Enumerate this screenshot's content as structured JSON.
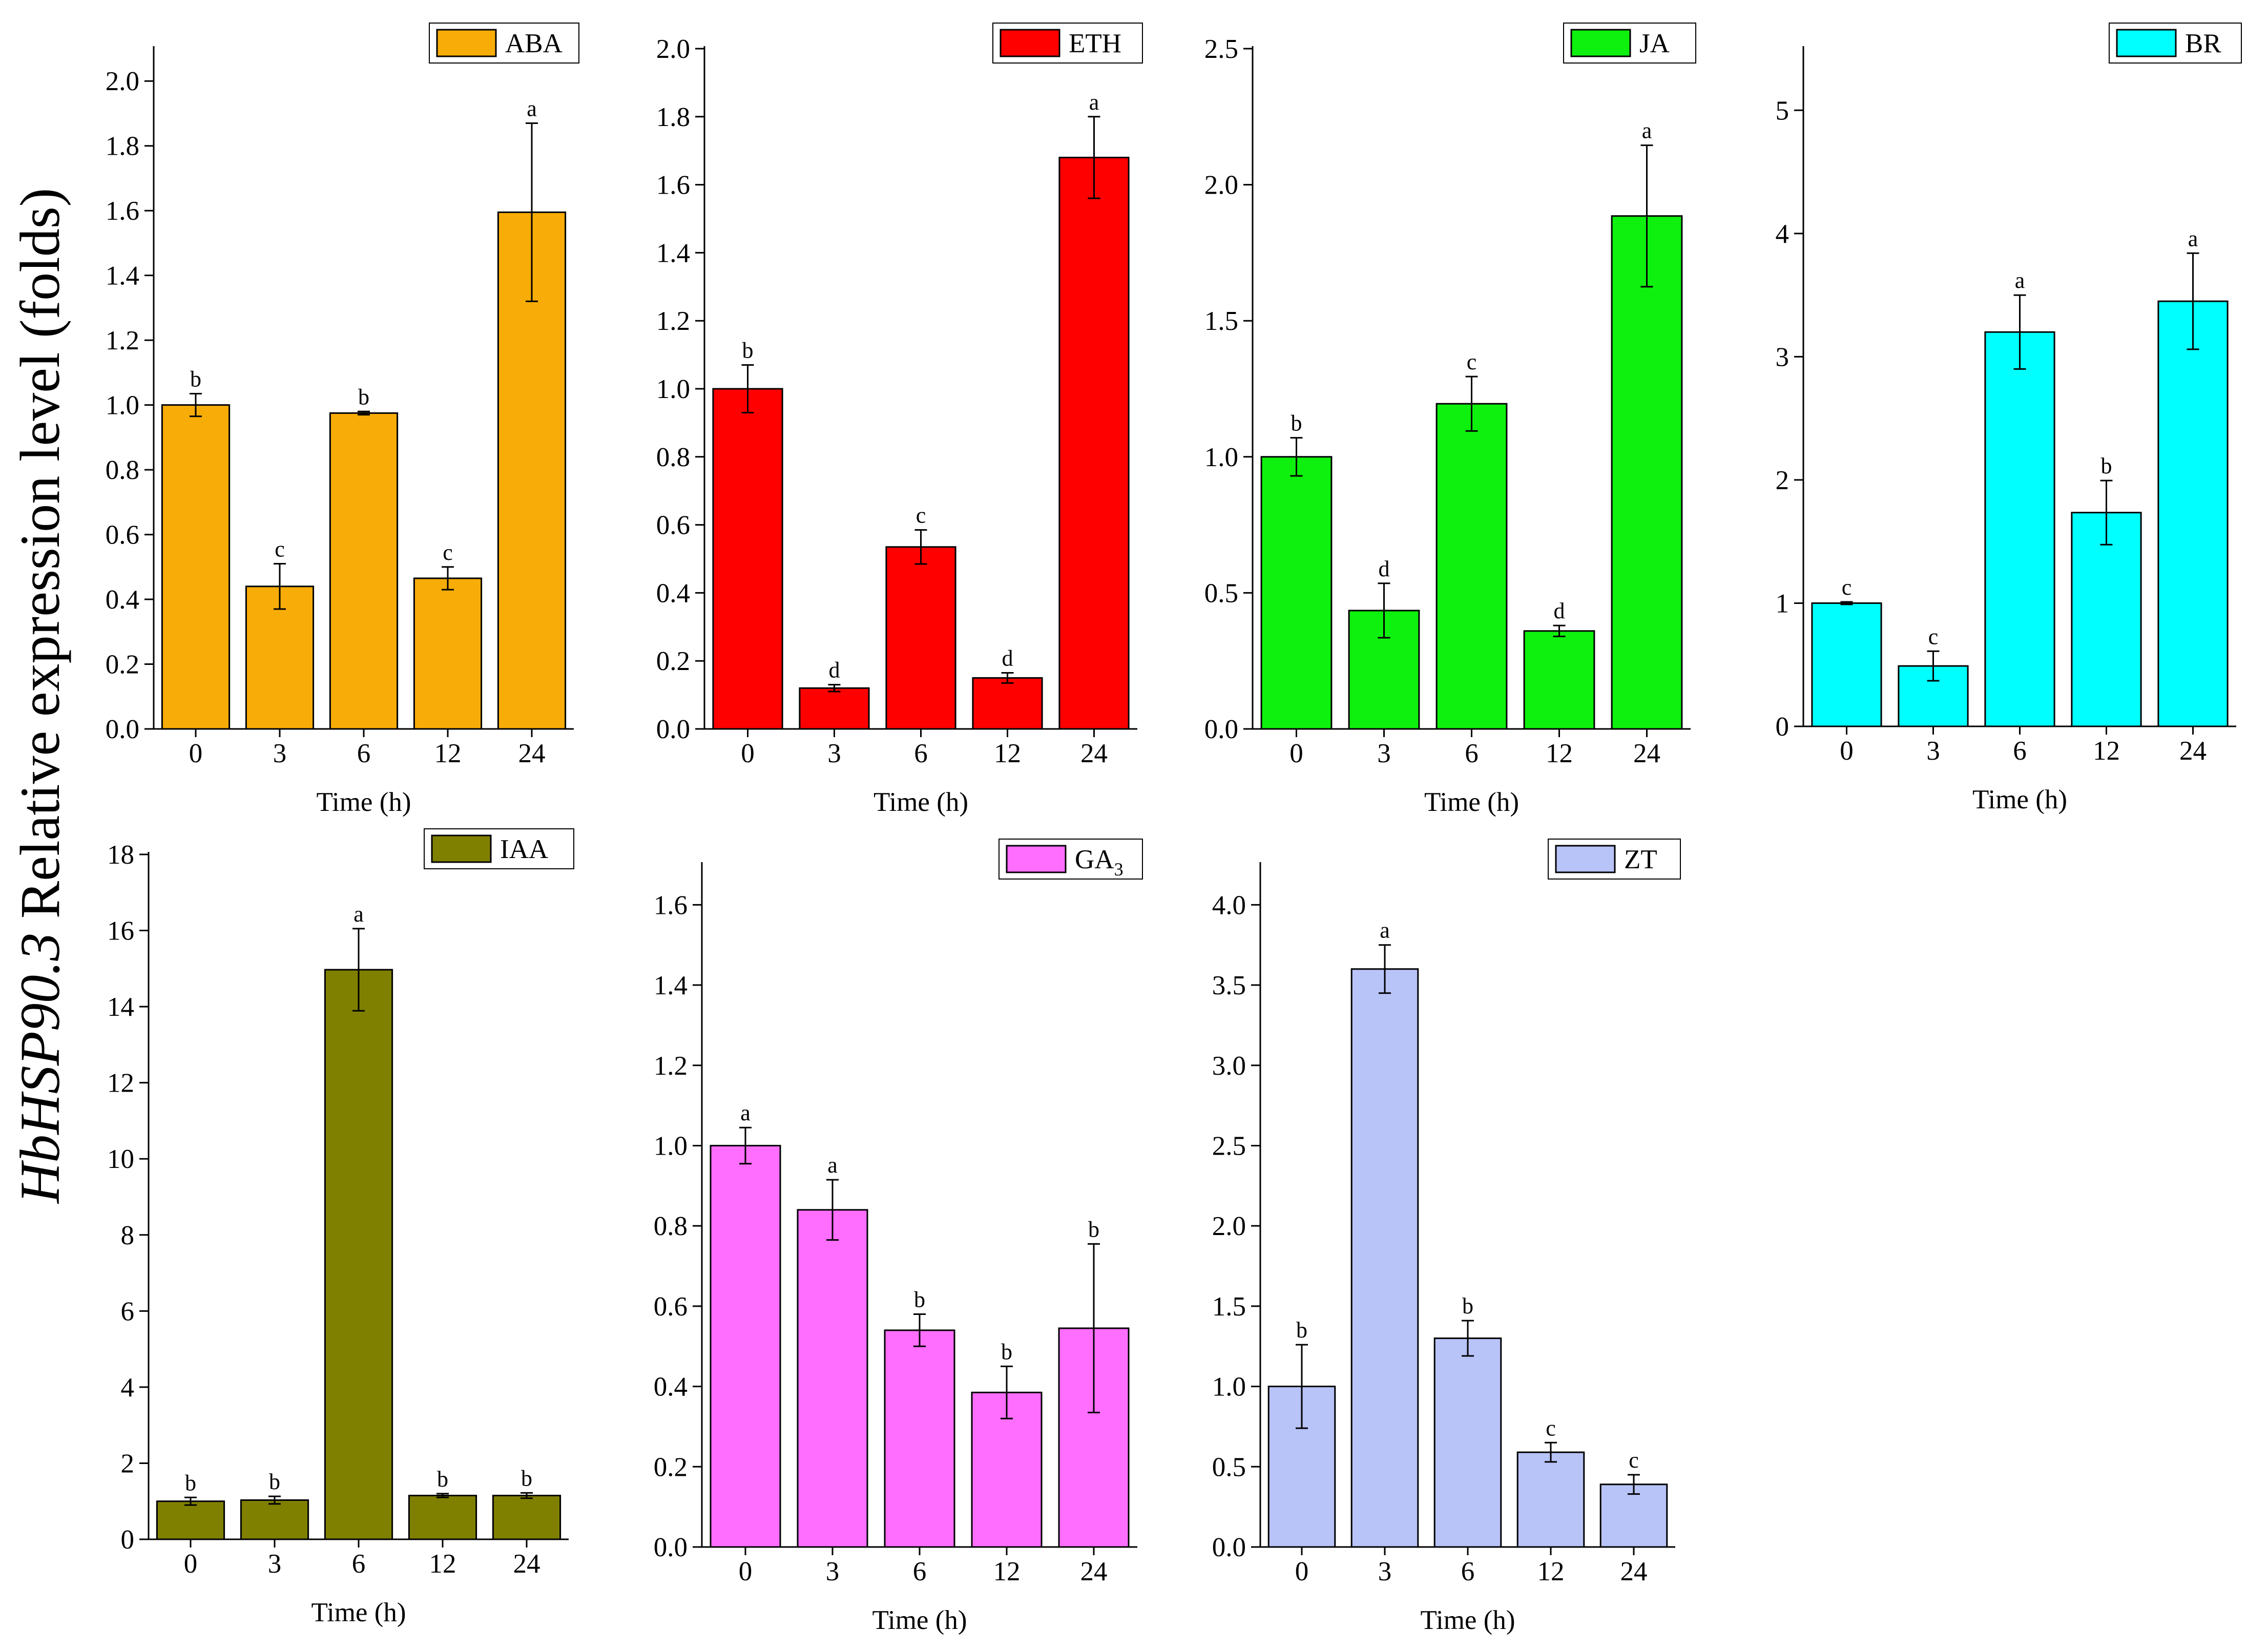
{
  "figure": {
    "ylabel_gene": "HbHSP90.3",
    "ylabel_rest": " Relative expression level (folds)"
  },
  "chart_data": [
    {
      "type": "bar",
      "legend": "ABA",
      "legend_sub": "",
      "color": "#F7AC08",
      "categories": [
        "0",
        "3",
        "6",
        "12",
        "24"
      ],
      "values": [
        1.0,
        0.44,
        0.975,
        0.465,
        1.595
      ],
      "errors": [
        0.035,
        0.07,
        0.005,
        0.035,
        0.275
      ],
      "letters": [
        "b",
        "c",
        "b",
        "c",
        "a"
      ],
      "ylim": [
        0,
        2.1
      ],
      "yticks": [
        0.0,
        0.2,
        0.4,
        0.6,
        0.8,
        1.0,
        1.2,
        1.4,
        1.6,
        1.8,
        2.0
      ],
      "ytick_labels": [
        "0.0",
        "0.2",
        "0.4",
        "0.6",
        "0.8",
        "1.0",
        "1.2",
        "1.4",
        "1.6",
        "1.8",
        "2.0"
      ],
      "xlabel": "Time (h)",
      "legend_position": "top-right"
    },
    {
      "type": "bar",
      "legend": "ETH",
      "legend_sub": "",
      "color": "#FF0000",
      "categories": [
        "0",
        "3",
        "6",
        "12",
        "24"
      ],
      "values": [
        1.0,
        0.12,
        0.535,
        0.15,
        1.68
      ],
      "errors": [
        0.07,
        0.01,
        0.05,
        0.015,
        0.12
      ],
      "letters": [
        "b",
        "d",
        "c",
        "d",
        "a"
      ],
      "ylim": [
        0,
        2.0
      ],
      "yticks": [
        0.0,
        0.2,
        0.4,
        0.6,
        0.8,
        1.0,
        1.2,
        1.4,
        1.6,
        1.8,
        2.0
      ],
      "ytick_labels": [
        "0.0",
        "0.2",
        "0.4",
        "0.6",
        "0.8",
        "1.0",
        "1.2",
        "1.4",
        "1.6",
        "1.8",
        "2.0"
      ],
      "xlabel": "Time (h)",
      "legend_position": "top-right"
    },
    {
      "type": "bar",
      "legend": "JA",
      "legend_sub": "",
      "color": "#0EF00E",
      "categories": [
        "0",
        "3",
        "6",
        "12",
        "24"
      ],
      "values": [
        1.0,
        0.435,
        1.195,
        0.36,
        1.885
      ],
      "errors": [
        0.07,
        0.1,
        0.1,
        0.02,
        0.26
      ],
      "letters": [
        "b",
        "d",
        "c",
        "d",
        "a"
      ],
      "ylim": [
        0,
        2.5
      ],
      "yticks": [
        0.0,
        0.5,
        1.0,
        1.5,
        2.0,
        2.5
      ],
      "ytick_labels": [
        "0.0",
        "0.5",
        "1.0",
        "1.5",
        "2.0",
        "2.5"
      ],
      "xlabel": "Time (h)",
      "legend_position": "top-right"
    },
    {
      "type": "bar",
      "legend": "BR",
      "legend_sub": "",
      "color": "#00FFFF",
      "categories": [
        "0",
        "3",
        "6",
        "12",
        "24"
      ],
      "values": [
        1.0,
        0.49,
        3.2,
        1.735,
        3.45
      ],
      "errors": [
        0.01,
        0.12,
        0.3,
        0.26,
        0.39
      ],
      "letters": [
        "c",
        "c",
        "a",
        "b",
        "a"
      ],
      "ylim": [
        0,
        5.5
      ],
      "yticks": [
        0,
        1,
        2,
        3,
        4,
        5
      ],
      "ytick_labels": [
        "0",
        "1",
        "2",
        "3",
        "4",
        "5"
      ],
      "xlabel": "Time (h)",
      "legend_position": "top-right"
    },
    {
      "type": "bar",
      "legend": "IAA",
      "legend_sub": "",
      "color": "#808000",
      "categories": [
        "0",
        "3",
        "6",
        "12",
        "24"
      ],
      "values": [
        1.0,
        1.03,
        14.97,
        1.15,
        1.15
      ],
      "errors": [
        0.1,
        0.1,
        1.08,
        0.05,
        0.07
      ],
      "letters": [
        "b",
        "b",
        "a",
        "b",
        "b"
      ],
      "ylim": [
        0,
        18
      ],
      "yticks": [
        0,
        2,
        4,
        6,
        8,
        10,
        12,
        14,
        16,
        18
      ],
      "ytick_labels": [
        "0",
        "2",
        "4",
        "6",
        "8",
        "10",
        "12",
        "14",
        "16",
        "18"
      ],
      "xlabel": "Time (h)",
      "legend_position": "top-right"
    },
    {
      "type": "bar",
      "legend": "GA",
      "legend_sub": "3",
      "color": "#FF6EFF",
      "categories": [
        "0",
        "3",
        "6",
        "12",
        "24"
      ],
      "values": [
        1.0,
        0.84,
        0.54,
        0.385,
        0.545
      ],
      "errors": [
        0.045,
        0.075,
        0.04,
        0.065,
        0.21
      ],
      "letters": [
        "a",
        "a",
        "b",
        "b",
        "b"
      ],
      "ylim": [
        0,
        1.7
      ],
      "yticks": [
        0.0,
        0.2,
        0.4,
        0.6,
        0.8,
        1.0,
        1.2,
        1.4,
        1.6
      ],
      "ytick_labels": [
        "0.0",
        "0.2",
        "0.4",
        "0.6",
        "0.8",
        "1.0",
        "1.2",
        "1.4",
        "1.6"
      ],
      "xlabel": "Time (h)",
      "legend_position": "top-right"
    },
    {
      "type": "bar",
      "legend": "ZT",
      "legend_sub": "",
      "color": "#B8C3F8",
      "categories": [
        "0",
        "3",
        "6",
        "12",
        "24"
      ],
      "values": [
        1.0,
        3.6,
        1.3,
        0.59,
        0.39
      ],
      "errors": [
        0.26,
        0.15,
        0.11,
        0.06,
        0.06
      ],
      "letters": [
        "b",
        "a",
        "b",
        "c",
        "c"
      ],
      "ylim": [
        0,
        4.25
      ],
      "yticks": [
        0.0,
        0.5,
        1.0,
        1.5,
        2.0,
        2.5,
        3.0,
        3.5,
        4.0
      ],
      "ytick_labels": [
        "0.0",
        "0.5",
        "1.0",
        "1.5",
        "2.0",
        "2.5",
        "3.0",
        "3.5",
        "4.0"
      ],
      "xlabel": "Time (h)",
      "legend_position": "top-right"
    }
  ]
}
